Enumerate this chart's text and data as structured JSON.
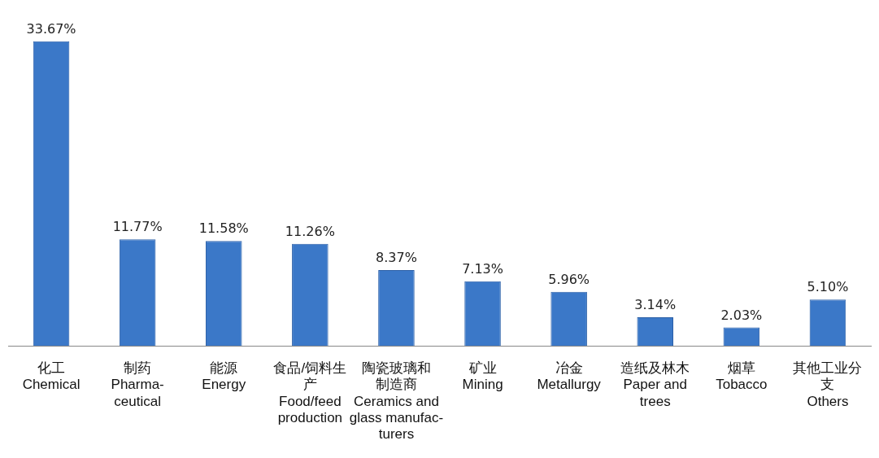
{
  "chart_data": {
    "type": "bar",
    "categories": [
      "化工\nChemical",
      "制药\nPharma-\nceutical",
      "能源\nEnergy",
      "食品/饲料生产\nFood/feed\nproduction",
      "陶瓷玻璃和制造商\nCeramics and\nglass manufac-\nturers",
      "矿业\nMining",
      "冶金\nMetallurgy",
      "造纸及林木\nPaper and\ntrees",
      "烟草\nTobacco",
      "其他工业分支\nOthers"
    ],
    "values": [
      33.67,
      11.77,
      11.58,
      11.26,
      8.37,
      7.13,
      5.96,
      3.14,
      2.03,
      5.1
    ],
    "value_labels": [
      "33.67%",
      "11.77%",
      "11.58%",
      "11.26%",
      "8.37%",
      "7.13%",
      "5.96%",
      "3.14%",
      "2.03%",
      "5.10%"
    ],
    "color": "#3b78c8",
    "grid": false,
    "legend": false
  }
}
